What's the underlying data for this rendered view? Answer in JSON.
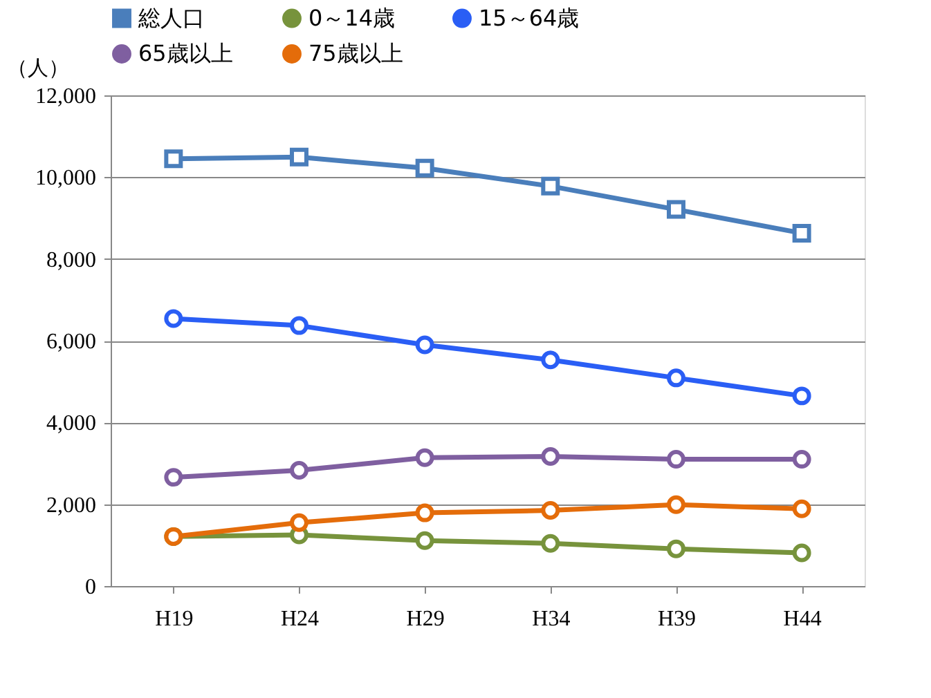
{
  "chart_data": {
    "type": "line",
    "ylabel": "（人）",
    "categories": [
      "H19",
      "H24",
      "H29",
      "H34",
      "H39",
      "H44"
    ],
    "series": [
      {
        "name": "総人口",
        "color": "#4a7ebb",
        "marker": "square",
        "values": [
          10450,
          10490,
          10220,
          9780,
          9210,
          8630
        ]
      },
      {
        "name": "0～14歳",
        "color": "#77933c",
        "marker": "circle",
        "values": [
          1210,
          1250,
          1110,
          1045,
          910,
          810
        ]
      },
      {
        "name": "15～64歳",
        "color": "#2a5ef5",
        "marker": "circle",
        "values": [
          6540,
          6370,
          5900,
          5530,
          5090,
          4650
        ]
      },
      {
        "name": "65歳以上",
        "color": "#7f5fa0",
        "marker": "circle",
        "values": [
          2660,
          2830,
          3140,
          3170,
          3100,
          3100
        ]
      },
      {
        "name": "75歳以上",
        "color": "#e46c0a",
        "marker": "circle",
        "values": [
          1210,
          1550,
          1790,
          1850,
          1990,
          1890
        ]
      }
    ],
    "ylim": [
      0,
      12000
    ],
    "yticks": [
      {
        "value": 0,
        "label": "0"
      },
      {
        "value": 2000,
        "label": "2,000"
      },
      {
        "value": 4000,
        "label": "4,000"
      },
      {
        "value": 6000,
        "label": "6,000"
      },
      {
        "value": 8000,
        "label": "8,000"
      },
      {
        "value": 10000,
        "label": "10,000"
      },
      {
        "value": 12000,
        "label": "12,000"
      }
    ],
    "grid": "y",
    "legend": "top",
    "line_style": "solid"
  }
}
